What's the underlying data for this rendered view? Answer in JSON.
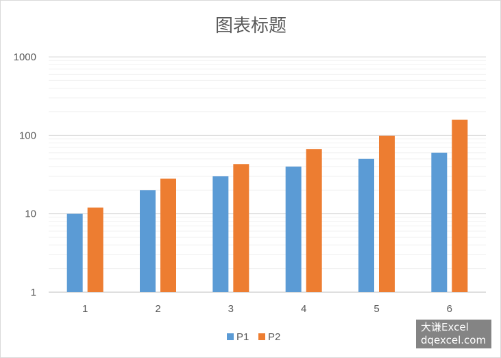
{
  "chart_data": {
    "type": "bar",
    "title": "图表标题",
    "categories": [
      "1",
      "2",
      "3",
      "4",
      "5",
      "6"
    ],
    "series": [
      {
        "name": "P1",
        "color": "#5b9bd5",
        "values": [
          10,
          20,
          30,
          40,
          50,
          60
        ]
      },
      {
        "name": "P2",
        "color": "#ed7d31",
        "values": [
          12,
          28,
          43,
          67,
          99,
          158
        ]
      }
    ],
    "y_scale": "log",
    "ylim": [
      1,
      1000
    ],
    "y_ticks": [
      "1",
      "10",
      "100",
      "1000"
    ],
    "grid": true,
    "legend": "bottom"
  },
  "watermark": {
    "line1": "大谦Excel",
    "line2": "dqexcel.com"
  }
}
